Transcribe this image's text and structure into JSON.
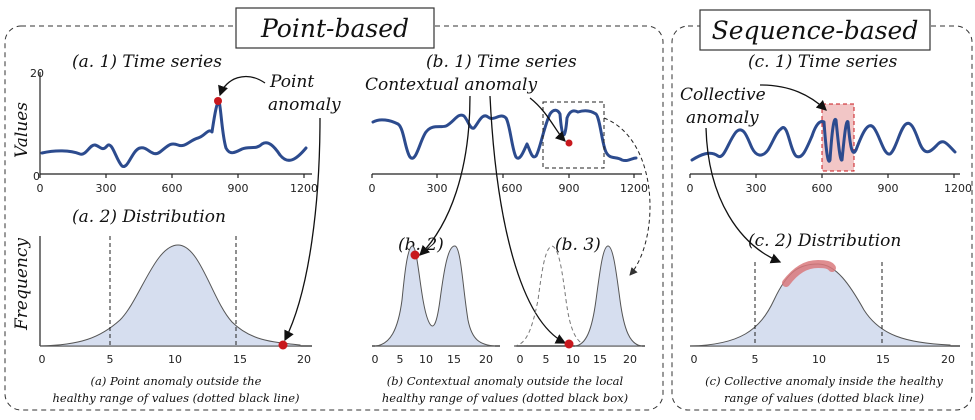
{
  "panels": {
    "point": {
      "title": "Point-based",
      "a1_label": "(a. 1) Time series",
      "a2_label": "(a. 2) Distribution",
      "b1_label": "(b. 1) Time series",
      "b2_label": "(b. 2)",
      "b3_label": "(b. 3)",
      "point_anomaly_1": "Point",
      "point_anomaly_2": "anomaly",
      "contextual_anomaly": "Contextual anomaly",
      "ylabel_values": "Values",
      "ylabel_freq": "Frequency",
      "caption_a_1": "(a) Point anomaly outside  the",
      "caption_a_2": "healthy range of values (dotted black line)",
      "caption_b_1": "(b) Contextual anomaly outside  the local",
      "caption_b_2": "healthy range of values (dotted black box)"
    },
    "sequence": {
      "title": "Sequence-based",
      "c1_label": "(c. 1) Time series",
      "c2_label": "(c. 2) Distribution",
      "collective_1": "Collective",
      "collective_2": "anomaly",
      "caption_c_1": "(c) Collective anomaly inside the healthy",
      "caption_c_2": "range of values (dotted black line)"
    }
  },
  "ticks": {
    "ts_x": [
      "0",
      "300",
      "600",
      "900",
      "1200"
    ],
    "ts_y_a": [
      "0",
      "20"
    ],
    "dist_x": [
      "0",
      "5",
      "10",
      "15",
      "20"
    ],
    "dist_x_small": [
      "0",
      "5",
      "10",
      "15",
      "20"
    ]
  },
  "colors": {
    "series": "#2c4b8e",
    "anomaly": "#c8181d",
    "fill": "#d6deef",
    "highlight": "#e8a5a5"
  }
}
